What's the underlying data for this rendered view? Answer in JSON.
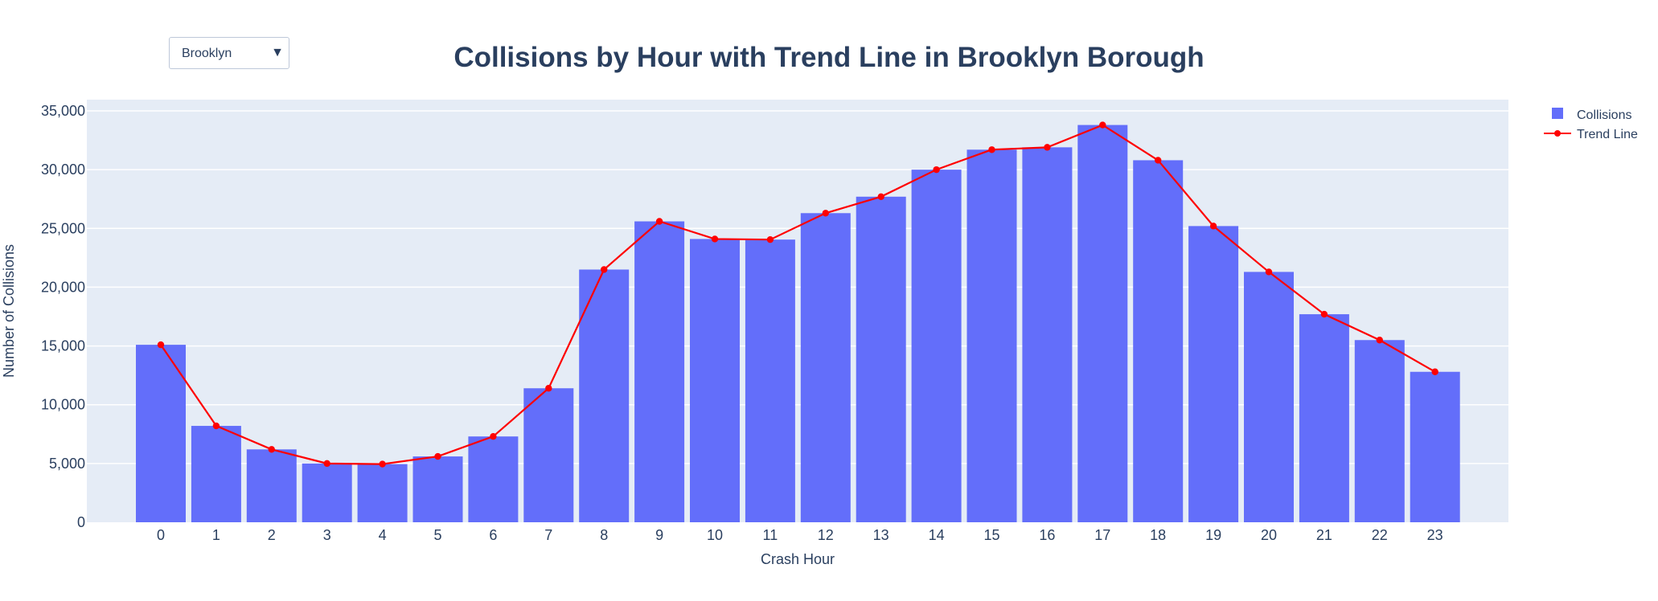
{
  "dropdown": {
    "selected": "Brooklyn",
    "arrow_icon": "triangle-down-icon"
  },
  "chart_data": {
    "type": "bar",
    "title": "Collisions by Hour with Trend Line in Brooklyn Borough",
    "xlabel": "Crash Hour",
    "ylabel": "Number of Collisions",
    "ylim": [
      0,
      35000
    ],
    "yticks": [
      0,
      5000,
      10000,
      15000,
      20000,
      25000,
      30000,
      35000
    ],
    "ytick_labels": [
      "0",
      "5,000",
      "10,000",
      "15,000",
      "20,000",
      "25,000",
      "30,000",
      "35,000"
    ],
    "grid": true,
    "legend_position": "top-right",
    "categories": [
      "0",
      "1",
      "2",
      "3",
      "4",
      "5",
      "6",
      "7",
      "8",
      "9",
      "10",
      "11",
      "12",
      "13",
      "14",
      "15",
      "16",
      "17",
      "18",
      "19",
      "20",
      "21",
      "22",
      "23"
    ],
    "series": [
      {
        "name": "Collisions",
        "type": "bar",
        "color": "#636efa",
        "values": [
          15100,
          8200,
          6200,
          5000,
          4950,
          5600,
          7300,
          11400,
          21500,
          25600,
          24100,
          24050,
          26300,
          27700,
          30000,
          31700,
          31900,
          33800,
          30800,
          25200,
          21300,
          17700,
          15500,
          12800
        ]
      },
      {
        "name": "Trend Line",
        "type": "line",
        "color": "#ff0000",
        "values": [
          15100,
          8200,
          6200,
          5000,
          4950,
          5600,
          7300,
          11400,
          21500,
          25600,
          24100,
          24050,
          26300,
          27700,
          30000,
          31700,
          31900,
          33800,
          30800,
          25200,
          21300,
          17700,
          15500,
          12800
        ]
      }
    ]
  }
}
